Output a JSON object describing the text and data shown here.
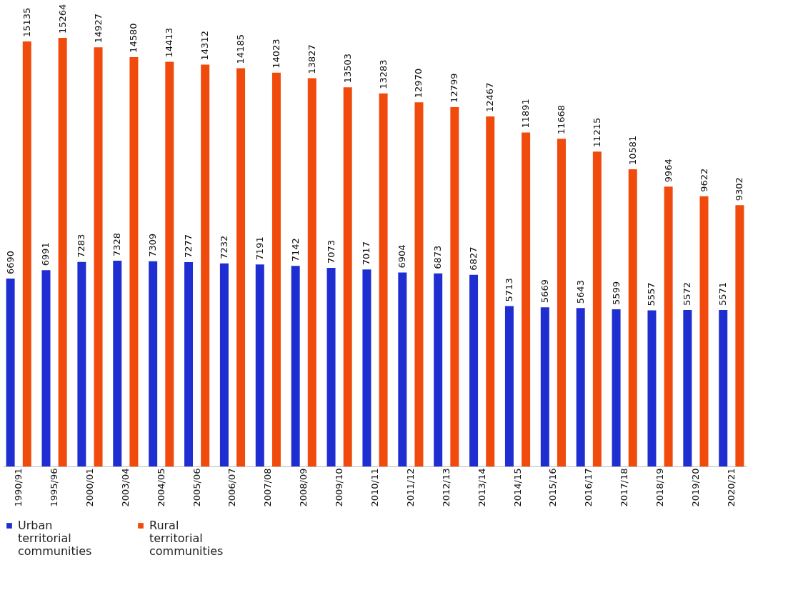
{
  "chart_data": {
    "type": "bar",
    "categories": [
      "1990/91",
      "1995/96",
      "2000/01",
      "2003/04",
      "2004/05",
      "2005/06",
      "2006/07",
      "2007/08",
      "2008/09",
      "2009/10",
      "2010/11",
      "2011/12",
      "2012/13",
      "2013/14",
      "2014/15",
      "2015/16",
      "2016/17",
      "2017/18",
      "2018/19",
      "2019/20",
      "2020/21"
    ],
    "series": [
      {
        "name": "Urban territorial communities",
        "color": "#1f2ed0",
        "values": [
          6690,
          6991,
          7283,
          7328,
          7309,
          7277,
          7232,
          7191,
          7142,
          7073,
          7017,
          6904,
          6873,
          6827,
          5713,
          5669,
          5643,
          5599,
          5557,
          5572,
          5571
        ]
      },
      {
        "name": "Rural territorial communities",
        "color": "#f04a0c",
        "values": [
          15135,
          15264,
          14927,
          14580,
          14413,
          14312,
          14185,
          14023,
          13827,
          13503,
          13283,
          12970,
          12799,
          12467,
          11891,
          11668,
          11215,
          10581,
          9964,
          9622,
          9302
        ]
      }
    ],
    "data_labels": true,
    "legend": "bottom",
    "grid": false
  }
}
